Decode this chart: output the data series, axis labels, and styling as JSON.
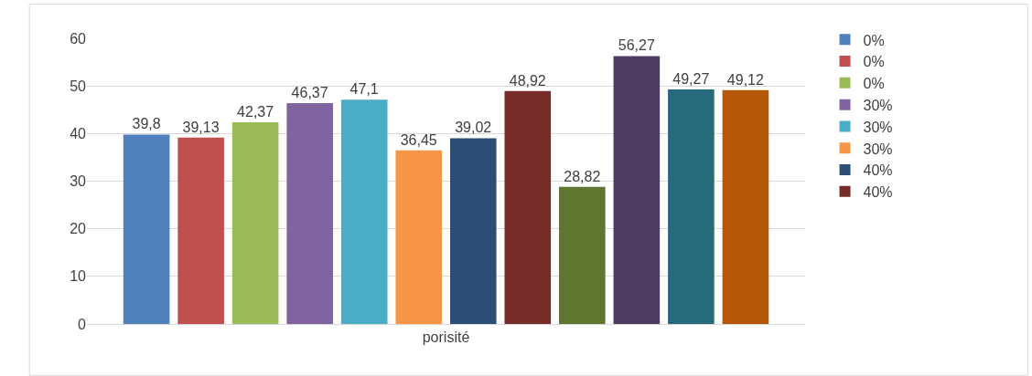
{
  "chart_data": {
    "type": "bar",
    "categories": [
      "porisité"
    ],
    "series": [
      {
        "name": "0%",
        "color": "#4f81bd",
        "values": [
          39.8
        ],
        "value_labels": [
          "39,8"
        ]
      },
      {
        "name": "0%",
        "color": "#c0504d",
        "values": [
          39.13
        ],
        "value_labels": [
          "39,13"
        ]
      },
      {
        "name": "0%",
        "color": "#9bbb59",
        "values": [
          42.37
        ],
        "value_labels": [
          "42,37"
        ]
      },
      {
        "name": "30%",
        "color": "#8064a2",
        "values": [
          46.37
        ],
        "value_labels": [
          "46,37"
        ]
      },
      {
        "name": "30%",
        "color": "#4bacc6",
        "values": [
          47.1
        ],
        "value_labels": [
          "47,1"
        ]
      },
      {
        "name": "30%",
        "color": "#f79646",
        "values": [
          36.45
        ],
        "value_labels": [
          "36,45"
        ]
      },
      {
        "name": "40%",
        "color": "#2c4d75",
        "values": [
          39.02
        ],
        "value_labels": [
          "39,02"
        ]
      },
      {
        "name": "40%",
        "color": "#772c2a",
        "values": [
          48.92
        ],
        "value_labels": [
          "48,92"
        ]
      },
      {
        "color": "#5f7530",
        "values": [
          28.82
        ],
        "value_labels": [
          "28,82"
        ]
      },
      {
        "color": "#4d3b62",
        "values": [
          56.27
        ],
        "value_labels": [
          "56,27"
        ]
      },
      {
        "color": "#276a7c",
        "values": [
          49.27
        ],
        "value_labels": [
          "49,27"
        ]
      },
      {
        "color": "#b65708",
        "values": [
          49.12
        ],
        "value_labels": [
          "49,12"
        ]
      }
    ],
    "ylim": [
      0,
      60
    ],
    "yticks": [
      0,
      10,
      20,
      30,
      40,
      50,
      60
    ],
    "grid": "y",
    "legend": "right"
  }
}
